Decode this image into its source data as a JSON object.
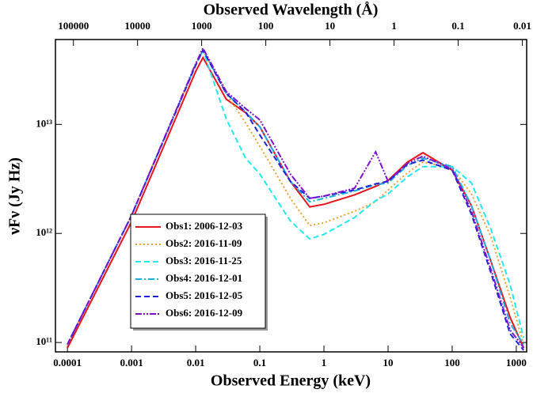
{
  "chart_data": {
    "type": "line",
    "xlabel": "Observed Energy (keV)",
    "x2label": "Observed Wavelength (Å)",
    "ylabel": "νFν (Jy Hz)",
    "xscale": "log",
    "yscale": "log",
    "xlim": [
      6.5e-05,
      1450
    ],
    "xticks": [
      0.0001,
      0.001,
      0.01,
      0.1,
      1,
      10,
      100,
      1000
    ],
    "x2lim": [
      190700,
      0.00855
    ],
    "x2ticks": [
      100000,
      10000,
      1000,
      100,
      10,
      1,
      0.1,
      0.01
    ],
    "ylim": [
      82000000000.0,
      60000000000000.0
    ],
    "yticks": [
      {
        "value": 100000000000.0,
        "label": "10¹¹"
      },
      {
        "value": 1000000000000.0,
        "label": "10¹²"
      },
      {
        "value": 10000000000000.0,
        "label": "10¹³"
      }
    ],
    "legend_loc": "lower left",
    "x": [
      0.0001,
      0.001,
      0.01,
      0.013,
      0.03,
      0.06,
      0.1,
      0.3,
      0.6,
      1,
      3,
      6.4,
      10,
      20,
      35,
      100,
      200,
      400,
      800,
      1300
    ],
    "series": [
      {
        "name": "Obs1: 2006-12-03",
        "color": "#e8141c",
        "dash": "solid",
        "values": [
          89000000000.0,
          1280000000000.0,
          30600000000000.0,
          41000000000000.0,
          17000000000000.0,
          12800000000000.0,
          9500000000000.0,
          3000000000000.0,
          1750000000000.0,
          1850000000000.0,
          2260000000000.0,
          2700000000000.0,
          3060000000000.0,
          4500000000000.0,
          5500000000000.0,
          3800000000000.0,
          1800000000000.0,
          560000000000.0,
          170000000000.0,
          89000000000.0
        ]
      },
      {
        "name": "Obs2: 2016-11-09",
        "color": "#f0a030",
        "dash": "dotted",
        "values": [
          96000000000.0,
          1460000000000.0,
          35000000000000.0,
          48000000000000.0,
          19200000000000.0,
          10300000000000.0,
          6300000000000.0,
          2100000000000.0,
          1180000000000.0,
          1250000000000.0,
          1600000000000.0,
          1950000000000.0,
          2500000000000.0,
          3600000000000.0,
          4500000000000.0,
          4000000000000.0,
          2300000000000.0,
          940000000000.0,
          260000000000.0,
          96000000000.0
        ]
      },
      {
        "name": "Obs3: 2016-11-25",
        "color": "#22e8f0",
        "dash": "dashed",
        "values": [
          96000000000.0,
          1460000000000.0,
          35000000000000.0,
          48000000000000.0,
          11200000000000.0,
          4900000000000.0,
          3500000000000.0,
          1300000000000.0,
          890000000000.0,
          980000000000.0,
          1400000000000.0,
          2000000000000.0,
          2300000000000.0,
          3300000000000.0,
          4100000000000.0,
          4100000000000.0,
          2900000000000.0,
          1100000000000.0,
          340000000000.0,
          110000000000.0
        ]
      },
      {
        "name": "Obs4: 2016-12-01",
        "color": "#18b0e0",
        "dash": "dashdot",
        "values": [
          96000000000.0,
          1460000000000.0,
          35000000000000.0,
          48000000000000.0,
          19200000000000.0,
          13000000000000.0,
          9500000000000.0,
          3000000000000.0,
          1950000000000.0,
          2100000000000.0,
          2450000000000.0,
          2800000000000.0,
          2900000000000.0,
          4200000000000.0,
          4900000000000.0,
          4100000000000.0,
          1800000000000.0,
          560000000000.0,
          150000000000.0,
          96000000000.0
        ]
      },
      {
        "name": "Obs5: 2016-12-05",
        "color": "#2020d8",
        "dash": "dashed",
        "values": [
          96000000000.0,
          1460000000000.0,
          35000000000000.0,
          48000000000000.0,
          19200000000000.0,
          13000000000000.0,
          8000000000000.0,
          3000000000000.0,
          2100000000000.0,
          2200000000000.0,
          2500000000000.0,
          2850000000000.0,
          3000000000000.0,
          4300000000000.0,
          4700000000000.0,
          3800000000000.0,
          1500000000000.0,
          440000000000.0,
          120000000000.0,
          85000000000.0
        ]
      },
      {
        "name": "Obs6: 2016-12-09",
        "color": "#8010d0",
        "dash": "dashdotdot",
        "values": [
          96000000000.0,
          1460000000000.0,
          36000000000000.0,
          50000000000000.0,
          20000000000000.0,
          14000000000000.0,
          11000000000000.0,
          3500000000000.0,
          2100000000000.0,
          2200000000000.0,
          2600000000000.0,
          5600000000000.0,
          3000000000000.0,
          4400000000000.0,
          5100000000000.0,
          3900000000000.0,
          1600000000000.0,
          470000000000.0,
          130000000000.0,
          90000000000.0
        ]
      }
    ]
  }
}
